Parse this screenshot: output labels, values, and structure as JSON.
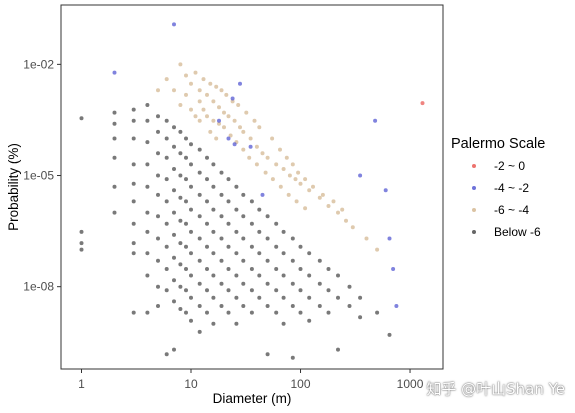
{
  "chart_data": {
    "type": "scatter",
    "xlabel": "Diameter (m)",
    "ylabel": "Probability (%)",
    "xscale": "log",
    "yscale": "log",
    "xlim": [
      0.65,
      2000
    ],
    "ylim": [
      6e-11,
      0.4
    ],
    "x_ticks": [
      {
        "value": 1,
        "label": "1"
      },
      {
        "value": 10,
        "label": "10"
      },
      {
        "value": 100,
        "label": "100"
      },
      {
        "value": 1000,
        "label": "1000"
      }
    ],
    "y_ticks": [
      {
        "value": 0.01,
        "label": "1e-02"
      },
      {
        "value": 1e-05,
        "label": "1e-05"
      },
      {
        "value": 1e-08,
        "label": "1e-08"
      }
    ],
    "grid": false,
    "legend": {
      "title": "Palermo Scale",
      "position": "right"
    },
    "series": [
      {
        "name": "-2 ~ 0",
        "color": "#e8504a",
        "points": [
          [
            1300,
            0.0009
          ]
        ]
      },
      {
        "name": "-4 ~ -2",
        "color": "#4a4fd0",
        "points": [
          [
            2,
            0.006
          ],
          [
            7,
            0.12
          ],
          [
            24,
            0.0012
          ],
          [
            28,
            0.003
          ],
          [
            18,
            0.0003
          ],
          [
            22,
            0.0001
          ],
          [
            25,
            7e-05
          ],
          [
            35,
            6e-05
          ],
          [
            45,
            3e-06
          ],
          [
            480,
            0.0003
          ],
          [
            350,
            1e-05
          ],
          [
            600,
            4e-06
          ],
          [
            650,
            2e-07
          ],
          [
            700,
            3e-08
          ],
          [
            750,
            3e-09
          ]
        ]
      },
      {
        "name": "-6 ~ -4",
        "color": "#d2b48c",
        "points": [
          [
            5,
            0.002
          ],
          [
            6,
            0.004
          ],
          [
            8,
            0.01
          ],
          [
            9,
            0.005
          ],
          [
            10,
            0.003
          ],
          [
            12,
            0.002
          ],
          [
            14,
            0.0015
          ],
          [
            16,
            0.001
          ],
          [
            18,
            0.0007
          ],
          [
            20,
            0.0005
          ],
          [
            22,
            0.0004
          ],
          [
            25,
            0.0003
          ],
          [
            28,
            0.0002
          ],
          [
            30,
            0.00015
          ],
          [
            35,
            0.0001
          ],
          [
            40,
            6e-05
          ],
          [
            45,
            4e-05
          ],
          [
            50,
            3e-05
          ],
          [
            60,
            2e-05
          ],
          [
            70,
            1.5e-05
          ],
          [
            80,
            1e-05
          ],
          [
            90,
            8e-06
          ],
          [
            100,
            6e-06
          ],
          [
            120,
            4e-06
          ],
          [
            150,
            2.5e-06
          ],
          [
            180,
            1.5e-06
          ],
          [
            220,
            1e-06
          ],
          [
            260,
            6e-07
          ],
          [
            300,
            4e-07
          ],
          [
            400,
            2e-07
          ],
          [
            500,
            1e-07
          ],
          [
            13,
            0.004
          ],
          [
            15,
            0.003
          ],
          [
            17,
            0.0025
          ],
          [
            19,
            0.002
          ],
          [
            21,
            0.0015
          ],
          [
            24,
            0.001
          ],
          [
            27,
            0.0008
          ],
          [
            32,
            0.0005
          ],
          [
            38,
            0.0003
          ],
          [
            42,
            0.0002
          ],
          [
            55,
            0.0001
          ],
          [
            65,
            5e-05
          ],
          [
            75,
            3e-05
          ],
          [
            85,
            2e-05
          ],
          [
            95,
            1.2e-05
          ],
          [
            110,
            8e-06
          ],
          [
            130,
            5e-06
          ],
          [
            160,
            3e-06
          ],
          [
            200,
            2e-06
          ],
          [
            240,
            1.2e-06
          ],
          [
            11,
            0.006
          ],
          [
            12,
            0.001
          ],
          [
            13,
            0.0006
          ],
          [
            14,
            0.0004
          ],
          [
            16,
            0.0003
          ],
          [
            18,
            0.00025
          ],
          [
            20,
            0.0002
          ],
          [
            23,
            0.00012
          ],
          [
            26,
            8e-05
          ],
          [
            30,
            5e-05
          ],
          [
            34,
            3e-05
          ],
          [
            40,
            2e-05
          ],
          [
            48,
            1.2e-05
          ],
          [
            56,
            8e-06
          ],
          [
            66,
            5e-06
          ],
          [
            78,
            3e-06
          ],
          [
            92,
            2e-06
          ],
          [
            110,
            1.3e-06
          ],
          [
            7,
            0.002
          ],
          [
            9,
            0.0015
          ],
          [
            8,
            0.0008
          ],
          [
            10,
            0.0006
          ],
          [
            11,
            0.0004
          ],
          [
            12,
            0.0003
          ],
          [
            15,
            0.00015
          ],
          [
            17,
            0.0001
          ]
        ]
      },
      {
        "name": "Below -6",
        "color": "#404040",
        "points": [
          [
            1,
            0.00035
          ],
          [
            1,
            3e-07
          ],
          [
            1,
            1e-07
          ],
          [
            1,
            1.5e-07
          ],
          [
            2,
            0.0005
          ],
          [
            2,
            0.00025
          ],
          [
            2,
            0.0001
          ],
          [
            2,
            3e-05
          ],
          [
            2,
            5e-06
          ],
          [
            2,
            1e-06
          ],
          [
            3,
            0.0006
          ],
          [
            3,
            0.0003
          ],
          [
            3,
            0.0001
          ],
          [
            3,
            2e-05
          ],
          [
            3,
            6e-06
          ],
          [
            3,
            2e-06
          ],
          [
            3,
            5e-07
          ],
          [
            3,
            1.5e-07
          ],
          [
            3,
            8e-08
          ],
          [
            3,
            2e-09
          ],
          [
            4,
            0.0008
          ],
          [
            4,
            0.0003
          ],
          [
            4,
            8e-05
          ],
          [
            4,
            2e-05
          ],
          [
            4,
            5e-06
          ],
          [
            4,
            1e-06
          ],
          [
            4,
            3e-07
          ],
          [
            4,
            8e-08
          ],
          [
            4,
            2e-08
          ],
          [
            4,
            2e-09
          ],
          [
            5,
            0.0004
          ],
          [
            5,
            0.00015
          ],
          [
            5,
            4e-05
          ],
          [
            5,
            1e-05
          ],
          [
            5,
            3e-06
          ],
          [
            5,
            8e-07
          ],
          [
            5,
            2e-07
          ],
          [
            5,
            5e-08
          ],
          [
            5,
            1e-08
          ],
          [
            5,
            3e-09
          ],
          [
            6,
            0.0003
          ],
          [
            6,
            0.0001
          ],
          [
            6,
            3e-05
          ],
          [
            6,
            8e-06
          ],
          [
            6,
            2e-06
          ],
          [
            6,
            5e-07
          ],
          [
            6,
            1.2e-07
          ],
          [
            6,
            3e-08
          ],
          [
            6,
            8e-09
          ],
          [
            6,
            1.5e-10
          ],
          [
            7,
            0.0002
          ],
          [
            7,
            6e-05
          ],
          [
            7,
            1.5e-05
          ],
          [
            7,
            4e-06
          ],
          [
            7,
            1e-06
          ],
          [
            7,
            2.5e-07
          ],
          [
            7,
            6e-08
          ],
          [
            7,
            1.5e-08
          ],
          [
            7,
            4e-09
          ],
          [
            7,
            2e-10
          ],
          [
            8,
            0.00015
          ],
          [
            8,
            4e-05
          ],
          [
            8,
            1e-05
          ],
          [
            8,
            2.5e-06
          ],
          [
            8,
            6e-07
          ],
          [
            8,
            1.5e-07
          ],
          [
            8,
            4e-08
          ],
          [
            8,
            1e-08
          ],
          [
            8,
            2.5e-09
          ],
          [
            9,
            0.0001
          ],
          [
            9,
            3e-05
          ],
          [
            9,
            8e-06
          ],
          [
            9,
            2e-06
          ],
          [
            9,
            5e-07
          ],
          [
            9,
            1.2e-07
          ],
          [
            9,
            3e-08
          ],
          [
            9,
            8e-09
          ],
          [
            9,
            2e-09
          ],
          [
            10,
            7e-05
          ],
          [
            10,
            2e-05
          ],
          [
            10,
            5e-06
          ],
          [
            10,
            1.2e-06
          ],
          [
            10,
            3e-07
          ],
          [
            10,
            8e-08
          ],
          [
            10,
            2e-08
          ],
          [
            10,
            5e-09
          ],
          [
            10,
            1.2e-09
          ],
          [
            12,
            5e-05
          ],
          [
            12,
            1.2e-05
          ],
          [
            12,
            3e-06
          ],
          [
            12,
            8e-07
          ],
          [
            12,
            2e-07
          ],
          [
            12,
            5e-08
          ],
          [
            12,
            1.2e-08
          ],
          [
            12,
            3e-09
          ],
          [
            12,
            6e-10
          ],
          [
            14,
            3e-05
          ],
          [
            14,
            8e-06
          ],
          [
            14,
            2e-06
          ],
          [
            14,
            5e-07
          ],
          [
            14,
            1.2e-07
          ],
          [
            14,
            3e-08
          ],
          [
            14,
            8e-09
          ],
          [
            14,
            2e-09
          ],
          [
            16,
            2e-05
          ],
          [
            16,
            5e-06
          ],
          [
            16,
            1.2e-06
          ],
          [
            16,
            3e-07
          ],
          [
            16,
            8e-08
          ],
          [
            16,
            2e-08
          ],
          [
            16,
            5e-09
          ],
          [
            16,
            1e-09
          ],
          [
            19,
            1.2e-05
          ],
          [
            19,
            3e-06
          ],
          [
            19,
            8e-07
          ],
          [
            19,
            2e-07
          ],
          [
            19,
            5e-08
          ],
          [
            19,
            1.2e-08
          ],
          [
            19,
            3e-09
          ],
          [
            22,
            8e-06
          ],
          [
            22,
            2e-06
          ],
          [
            22,
            5e-07
          ],
          [
            22,
            1.2e-07
          ],
          [
            22,
            3e-08
          ],
          [
            22,
            8e-09
          ],
          [
            22,
            2e-09
          ],
          [
            26,
            5e-06
          ],
          [
            26,
            1.2e-06
          ],
          [
            26,
            3e-07
          ],
          [
            26,
            8e-08
          ],
          [
            26,
            2e-08
          ],
          [
            26,
            5e-09
          ],
          [
            26,
            1e-09
          ],
          [
            30,
            3e-06
          ],
          [
            30,
            8e-07
          ],
          [
            30,
            2e-07
          ],
          [
            30,
            5e-08
          ],
          [
            30,
            1.2e-08
          ],
          [
            30,
            3e-09
          ],
          [
            36,
            2e-06
          ],
          [
            36,
            5e-07
          ],
          [
            36,
            1.2e-07
          ],
          [
            36,
            3e-08
          ],
          [
            36,
            8e-09
          ],
          [
            36,
            2e-09
          ],
          [
            42,
            1.2e-06
          ],
          [
            42,
            3e-07
          ],
          [
            42,
            8e-08
          ],
          [
            42,
            2e-08
          ],
          [
            42,
            5e-09
          ],
          [
            50,
            8e-07
          ],
          [
            50,
            2e-07
          ],
          [
            50,
            5e-08
          ],
          [
            50,
            1.2e-08
          ],
          [
            50,
            3e-09
          ],
          [
            50,
            1.5e-10
          ],
          [
            60,
            5e-07
          ],
          [
            60,
            1.2e-07
          ],
          [
            60,
            3e-08
          ],
          [
            60,
            8e-09
          ],
          [
            60,
            2e-09
          ],
          [
            70,
            3e-07
          ],
          [
            70,
            8e-08
          ],
          [
            70,
            2e-08
          ],
          [
            70,
            5e-09
          ],
          [
            70,
            1e-09
          ],
          [
            85,
            2e-07
          ],
          [
            85,
            5e-08
          ],
          [
            85,
            1.2e-08
          ],
          [
            85,
            3e-09
          ],
          [
            85,
            1.2e-10
          ],
          [
            100,
            1.2e-07
          ],
          [
            100,
            3e-08
          ],
          [
            100,
            8e-09
          ],
          [
            100,
            2e-09
          ],
          [
            120,
            8e-08
          ],
          [
            120,
            2e-08
          ],
          [
            120,
            5e-09
          ],
          [
            120,
            1.2e-09
          ],
          [
            150,
            5e-08
          ],
          [
            150,
            1.2e-08
          ],
          [
            150,
            3e-09
          ],
          [
            180,
            3e-08
          ],
          [
            180,
            8e-09
          ],
          [
            180,
            2e-09
          ],
          [
            220,
            2e-08
          ],
          [
            220,
            5e-09
          ],
          [
            220,
            2e-10
          ],
          [
            280,
            1e-08
          ],
          [
            280,
            3e-09
          ],
          [
            350,
            5e-09
          ],
          [
            350,
            1.5e-09
          ],
          [
            500,
            2e-09
          ],
          [
            650,
            5e-10
          ]
        ]
      }
    ]
  }
}
